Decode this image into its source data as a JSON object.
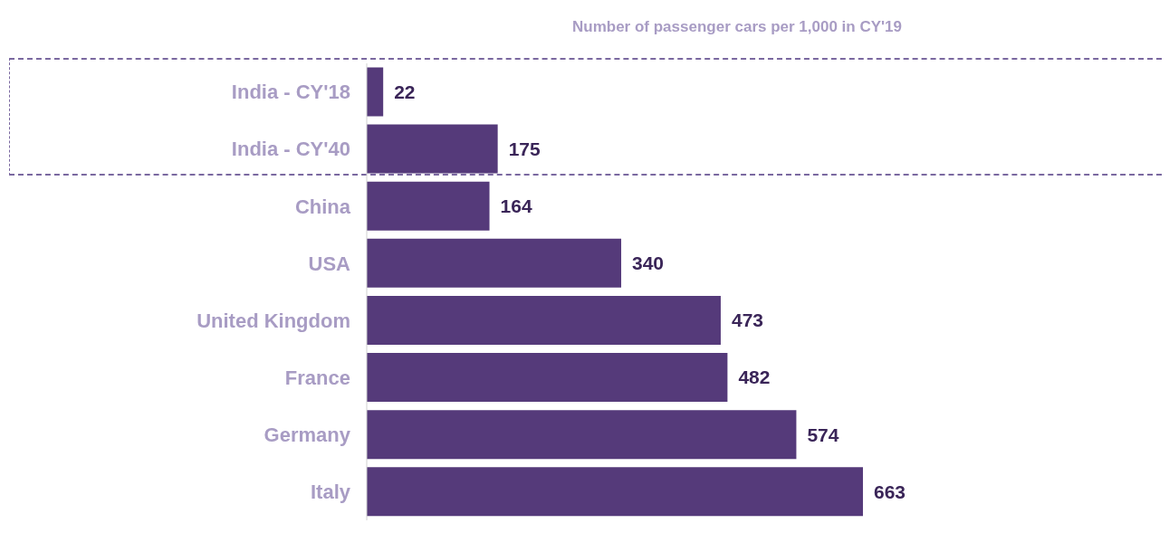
{
  "chart_data": {
    "type": "bar",
    "orientation": "horizontal",
    "title": "Number of passenger cars per 1,000 in CY'19",
    "categories": [
      "India - CY'18",
      "India - CY'40",
      "China",
      "USA",
      "United Kingdom",
      "France",
      "Germany",
      "Italy"
    ],
    "values": [
      22,
      175,
      164,
      340,
      473,
      482,
      574,
      663
    ],
    "color": "#553a7a",
    "data_labels": true,
    "grid": false
  }
}
